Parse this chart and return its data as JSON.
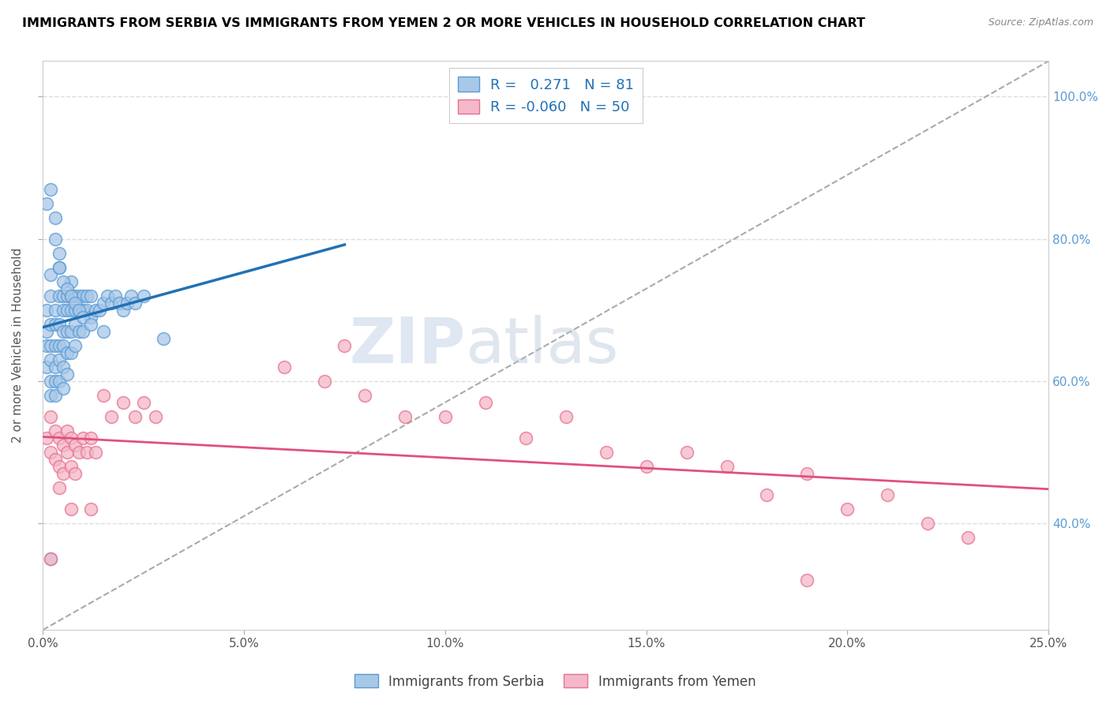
{
  "title": "IMMIGRANTS FROM SERBIA VS IMMIGRANTS FROM YEMEN 2 OR MORE VEHICLES IN HOUSEHOLD CORRELATION CHART",
  "source": "Source: ZipAtlas.com",
  "ylabel": "2 or more Vehicles in Household",
  "xlim": [
    0.0,
    0.25
  ],
  "ylim": [
    0.25,
    1.05
  ],
  "xtick_labels": [
    "0.0%",
    "5.0%",
    "10.0%",
    "15.0%",
    "20.0%",
    "25.0%"
  ],
  "xtick_vals": [
    0.0,
    0.05,
    0.1,
    0.15,
    0.2,
    0.25
  ],
  "ytick_right_vals": [
    1.0,
    0.8,
    0.6,
    0.4
  ],
  "ytick_right_labels": [
    "100.0%",
    "80.0%",
    "60.0%",
    "40.0%"
  ],
  "serbia_color": "#a8c8e8",
  "serbia_edge": "#5b9bd5",
  "yemen_color": "#f4b8c8",
  "yemen_edge": "#e87090",
  "serbia_R": 0.271,
  "serbia_N": 81,
  "yemen_R": -0.06,
  "yemen_N": 50,
  "legend_label_serbia": "Immigrants from Serbia",
  "legend_label_yemen": "Immigrants from Yemen",
  "watermark_zip": "ZIP",
  "watermark_atlas": "atlas",
  "serbia_trend_color": "#2171b5",
  "yemen_trend_color": "#e05080",
  "diag_color": "#aaaaaa",
  "serbia_x": [
    0.001,
    0.001,
    0.001,
    0.001,
    0.002,
    0.002,
    0.002,
    0.002,
    0.002,
    0.002,
    0.002,
    0.003,
    0.003,
    0.003,
    0.003,
    0.003,
    0.003,
    0.004,
    0.004,
    0.004,
    0.004,
    0.004,
    0.004,
    0.005,
    0.005,
    0.005,
    0.005,
    0.005,
    0.005,
    0.006,
    0.006,
    0.006,
    0.006,
    0.006,
    0.007,
    0.007,
    0.007,
    0.007,
    0.007,
    0.008,
    0.008,
    0.008,
    0.008,
    0.009,
    0.009,
    0.009,
    0.01,
    0.01,
    0.01,
    0.011,
    0.011,
    0.012,
    0.012,
    0.013,
    0.014,
    0.015,
    0.016,
    0.017,
    0.018,
    0.019,
    0.02,
    0.021,
    0.022,
    0.023,
    0.025,
    0.001,
    0.002,
    0.003,
    0.003,
    0.004,
    0.004,
    0.005,
    0.006,
    0.007,
    0.008,
    0.009,
    0.01,
    0.012,
    0.015,
    0.03,
    0.002
  ],
  "serbia_y": [
    0.62,
    0.65,
    0.67,
    0.7,
    0.68,
    0.65,
    0.63,
    0.6,
    0.58,
    0.72,
    0.75,
    0.7,
    0.68,
    0.65,
    0.62,
    0.6,
    0.58,
    0.72,
    0.68,
    0.65,
    0.63,
    0.6,
    0.76,
    0.72,
    0.7,
    0.67,
    0.65,
    0.62,
    0.59,
    0.72,
    0.7,
    0.67,
    0.64,
    0.61,
    0.74,
    0.72,
    0.7,
    0.67,
    0.64,
    0.72,
    0.7,
    0.68,
    0.65,
    0.72,
    0.7,
    0.67,
    0.72,
    0.7,
    0.67,
    0.72,
    0.7,
    0.72,
    0.69,
    0.7,
    0.7,
    0.71,
    0.72,
    0.71,
    0.72,
    0.71,
    0.7,
    0.71,
    0.72,
    0.71,
    0.72,
    0.85,
    0.87,
    0.83,
    0.8,
    0.78,
    0.76,
    0.74,
    0.73,
    0.72,
    0.71,
    0.7,
    0.69,
    0.68,
    0.67,
    0.66,
    0.35
  ],
  "yemen_x": [
    0.001,
    0.002,
    0.002,
    0.003,
    0.003,
    0.004,
    0.004,
    0.005,
    0.005,
    0.006,
    0.006,
    0.007,
    0.007,
    0.008,
    0.008,
    0.009,
    0.01,
    0.011,
    0.012,
    0.013,
    0.015,
    0.017,
    0.02,
    0.023,
    0.025,
    0.028,
    0.06,
    0.07,
    0.075,
    0.08,
    0.09,
    0.1,
    0.11,
    0.12,
    0.13,
    0.14,
    0.15,
    0.16,
    0.17,
    0.18,
    0.19,
    0.2,
    0.21,
    0.22,
    0.23,
    0.002,
    0.004,
    0.007,
    0.012,
    0.19
  ],
  "yemen_y": [
    0.52,
    0.55,
    0.5,
    0.53,
    0.49,
    0.52,
    0.48,
    0.51,
    0.47,
    0.53,
    0.5,
    0.52,
    0.48,
    0.51,
    0.47,
    0.5,
    0.52,
    0.5,
    0.52,
    0.5,
    0.58,
    0.55,
    0.57,
    0.55,
    0.57,
    0.55,
    0.62,
    0.6,
    0.65,
    0.58,
    0.55,
    0.55,
    0.57,
    0.52,
    0.55,
    0.5,
    0.48,
    0.5,
    0.48,
    0.44,
    0.47,
    0.42,
    0.44,
    0.4,
    0.38,
    0.35,
    0.45,
    0.42,
    0.42,
    0.32
  ]
}
